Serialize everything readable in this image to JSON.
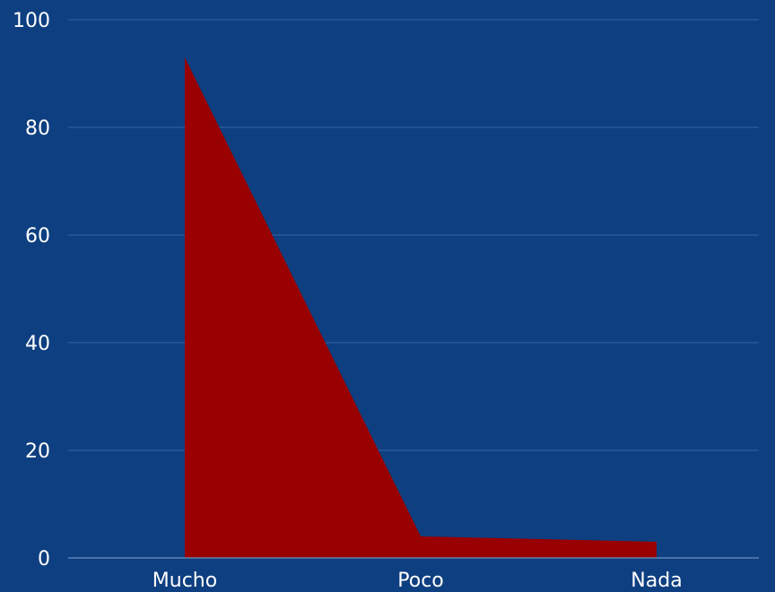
{
  "chart_data": {
    "type": "area",
    "categories": [
      "Mucho",
      "Poco",
      "Nada"
    ],
    "series": [
      {
        "values": [
          93,
          4,
          3
        ]
      }
    ],
    "ylim": [
      0,
      100
    ],
    "yticks": [
      0,
      20,
      40,
      60,
      80,
      100
    ],
    "grid": true,
    "legend": "none"
  },
  "colors": {
    "background": "#0e3f80",
    "area": "#990000",
    "grid": "#3a64a0",
    "axis": "#6f8fbf",
    "text": "#ffffff"
  }
}
